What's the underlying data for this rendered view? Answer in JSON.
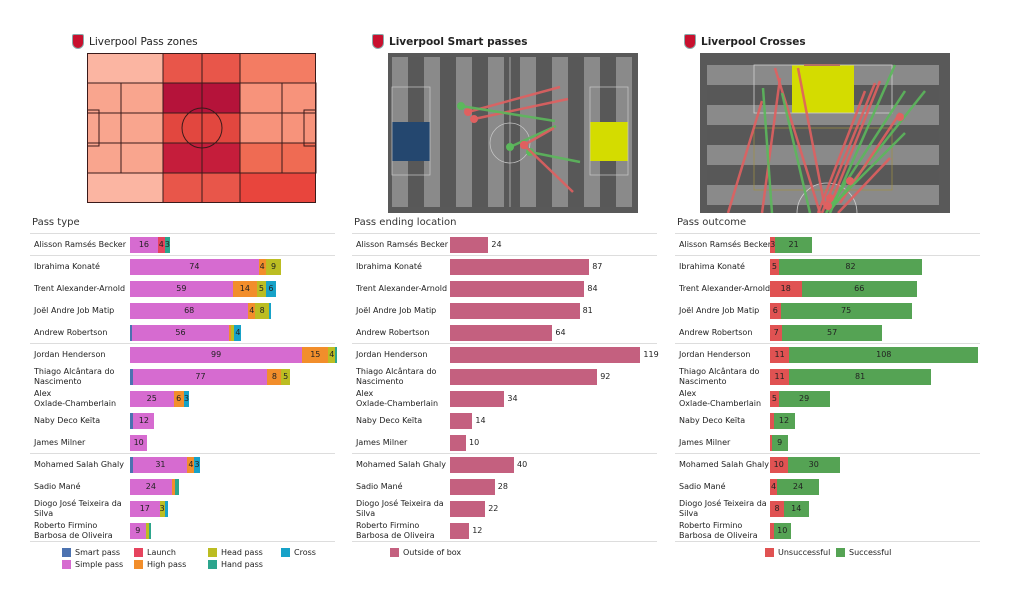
{
  "panels": [
    {
      "title": "Liverpool Pass zones",
      "section": "Pass type"
    },
    {
      "title": "Liverpool Smart passes",
      "section": "Pass ending location"
    },
    {
      "title": "Liverpool Crosses",
      "section": "Pass outcome"
    }
  ],
  "players": [
    "Alisson Ramsés Becker",
    "Ibrahima Konaté",
    "Trent Alexander-Arnold",
    "Joël Andre Job Matip",
    "Andrew Robertson",
    "Jordan Henderson",
    "Thiago Alcântara do\nNascimento",
    "Alex\nOxlade-Chamberlain",
    "Naby Deco Keïta",
    "James Milner",
    "Mohamed  Salah Ghaly",
    "Sadio Mané",
    "Diogo José Teixeira da\nSilva",
    "Roberto Firmino\nBarbosa de Oliveira"
  ],
  "heatmap_colors": [
    [
      "#fbb5a2",
      "#f9a58e",
      "#f9a58e",
      "#f9a58e",
      "#fbb5a2"
    ],
    [
      "#e8564a",
      "#b5133a",
      "#e2473f",
      "#c51d3b",
      "#e8564a"
    ],
    [
      "#e8564a",
      "#b5133a",
      "#e2473f",
      "#c51d3b",
      "#e8564a"
    ],
    [
      "#f37c63",
      "#f7937b",
      "#f7937b",
      "#ef6b53",
      "#e8453d"
    ]
  ],
  "chart_data": [
    {
      "type": "bar",
      "stacked": true,
      "orientation": "horizontal",
      "title": "Pass type",
      "series": [
        {
          "name": "Smart pass",
          "color": "#4c72b0",
          "values": [
            0,
            0,
            0,
            0,
            1,
            0,
            2,
            0,
            2,
            0,
            2,
            0,
            0,
            0
          ]
        },
        {
          "name": "Simple pass",
          "color": "#d66bd0",
          "values": [
            16,
            74,
            59,
            68,
            56,
            99,
            77,
            25,
            12,
            10,
            31,
            24,
            17,
            9
          ]
        },
        {
          "name": "Launch",
          "color": "#e6445e",
          "values": [
            4,
            0,
            0,
            0,
            0,
            0,
            0,
            0,
            0,
            0,
            0,
            0,
            0,
            0
          ]
        },
        {
          "name": "High pass",
          "color": "#f28e2b",
          "values": [
            0,
            4,
            14,
            4,
            1,
            15,
            8,
            6,
            0,
            0,
            4,
            2,
            0,
            0
          ]
        },
        {
          "name": "Head pass",
          "color": "#bcbd22",
          "values": [
            0,
            9,
            5,
            8,
            2,
            4,
            5,
            0,
            0,
            0,
            0,
            0,
            3,
            2
          ]
        },
        {
          "name": "Hand pass",
          "color": "#2ca58d",
          "values": [
            3,
            0,
            0,
            0,
            0,
            1,
            0,
            0,
            0,
            0,
            0,
            2,
            0,
            1
          ]
        },
        {
          "name": "Cross",
          "color": "#17a2c8",
          "values": [
            0,
            0,
            6,
            1,
            4,
            0,
            0,
            3,
            0,
            0,
            3,
            0,
            2,
            0
          ]
        }
      ]
    },
    {
      "type": "bar",
      "orientation": "horizontal",
      "title": "Pass ending location",
      "series": [
        {
          "name": "Outside of box",
          "color": "#c4607f",
          "values": [
            24,
            87,
            84,
            81,
            64,
            119,
            92,
            34,
            14,
            10,
            40,
            28,
            22,
            12
          ]
        }
      ]
    },
    {
      "type": "bar",
      "stacked": true,
      "orientation": "horizontal",
      "title": "Pass outcome",
      "series": [
        {
          "name": "Unsuccessful",
          "color": "#e05252",
          "values": [
            3,
            5,
            18,
            6,
            7,
            11,
            11,
            5,
            2,
            1,
            10,
            4,
            8,
            2
          ]
        },
        {
          "name": "Successful",
          "color": "#55a354",
          "values": [
            21,
            82,
            66,
            75,
            57,
            108,
            81,
            29,
            12,
            9,
            30,
            24,
            14,
            10
          ]
        }
      ]
    }
  ]
}
